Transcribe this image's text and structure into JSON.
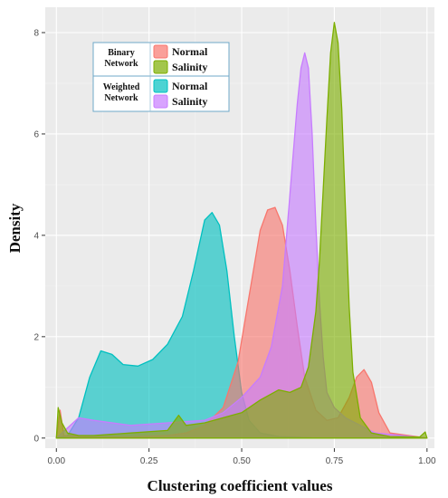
{
  "chart_data": {
    "type": "area",
    "title": "",
    "xlabel": "Clustering coefficient values",
    "ylabel": "Density",
    "xlim": [
      -0.03,
      1.02
    ],
    "ylim": [
      -0.2,
      8.5
    ],
    "x_ticks": [
      0.0,
      0.25,
      0.5,
      0.75,
      1.0
    ],
    "x_tick_labels": [
      "0.00",
      "0.25",
      "0.50",
      "0.75",
      "1.00"
    ],
    "y_ticks": [
      0,
      2,
      4,
      6,
      8
    ],
    "y_tick_labels": [
      "0",
      "2",
      "4",
      "6",
      "8"
    ],
    "grid": true,
    "legend_position": "top-left",
    "legend": {
      "groups": [
        {
          "group_label": [
            "Binary",
            "Network"
          ],
          "entries": [
            "Normal",
            "Salinity"
          ]
        },
        {
          "group_label": [
            "Weighted",
            "Network"
          ],
          "entries": [
            "Normal",
            "Salinity"
          ]
        }
      ]
    },
    "series": [
      {
        "group": "Weighted Network",
        "label": "Normal",
        "color": "#00c0c0",
        "x": [
          0.0,
          0.03,
          0.06,
          0.09,
          0.12,
          0.15,
          0.18,
          0.22,
          0.26,
          0.3,
          0.34,
          0.37,
          0.4,
          0.42,
          0.44,
          0.46,
          0.48,
          0.5,
          0.52,
          0.55,
          0.6,
          0.7,
          1.0
        ],
        "y": [
          0,
          0.05,
          0.4,
          1.2,
          1.72,
          1.65,
          1.45,
          1.42,
          1.55,
          1.85,
          2.4,
          3.3,
          4.3,
          4.45,
          4.2,
          3.3,
          2.0,
          0.9,
          0.35,
          0.1,
          0.03,
          0,
          0
        ]
      },
      {
        "group": "Binary Network",
        "label": "Normal",
        "color": "#f8766d",
        "x": [
          0.0,
          0.01,
          0.02,
          0.1,
          0.2,
          0.3,
          0.35,
          0.4,
          0.45,
          0.49,
          0.52,
          0.55,
          0.57,
          0.59,
          0.61,
          0.63,
          0.65,
          0.67,
          0.7,
          0.73,
          0.76,
          0.79,
          0.81,
          0.83,
          0.85,
          0.87,
          0.9,
          1.0
        ],
        "y": [
          0,
          0.55,
          0.05,
          0.02,
          0.02,
          0.05,
          0.1,
          0.25,
          0.6,
          1.5,
          2.8,
          4.1,
          4.5,
          4.55,
          4.2,
          3.3,
          2.2,
          1.2,
          0.55,
          0.35,
          0.4,
          0.8,
          1.2,
          1.35,
          1.1,
          0.5,
          0.1,
          0
        ]
      },
      {
        "group": "Weighted Network",
        "label": "Salinity",
        "color": "#c77cff",
        "x": [
          0.0,
          0.03,
          0.06,
          0.1,
          0.2,
          0.3,
          0.4,
          0.45,
          0.5,
          0.55,
          0.58,
          0.61,
          0.63,
          0.65,
          0.66,
          0.67,
          0.68,
          0.69,
          0.7,
          0.71,
          0.72,
          0.73,
          0.75,
          0.78,
          0.82,
          0.86,
          1.0
        ],
        "y": [
          0,
          0.2,
          0.4,
          0.35,
          0.25,
          0.3,
          0.35,
          0.5,
          0.8,
          1.2,
          1.8,
          3.0,
          4.8,
          6.6,
          7.3,
          7.6,
          7.3,
          6.0,
          4.2,
          2.7,
          1.6,
          0.9,
          0.6,
          0.4,
          0.25,
          0.1,
          0
        ]
      },
      {
        "group": "Binary Network",
        "label": "Salinity",
        "color": "#7cae00",
        "x": [
          0.0,
          0.005,
          0.015,
          0.03,
          0.06,
          0.1,
          0.2,
          0.3,
          0.33,
          0.35,
          0.4,
          0.5,
          0.55,
          0.6,
          0.63,
          0.66,
          0.68,
          0.7,
          0.71,
          0.72,
          0.73,
          0.74,
          0.75,
          0.76,
          0.77,
          0.78,
          0.79,
          0.8,
          0.82,
          0.85,
          0.9,
          0.98,
          0.995,
          1.0
        ],
        "y": [
          0,
          0.6,
          0.3,
          0.1,
          0.05,
          0.05,
          0.1,
          0.15,
          0.45,
          0.25,
          0.3,
          0.5,
          0.75,
          0.95,
          0.9,
          1.0,
          1.4,
          2.5,
          3.5,
          4.9,
          6.3,
          7.6,
          8.2,
          7.8,
          6.5,
          4.5,
          2.6,
          1.3,
          0.4,
          0.1,
          0.03,
          0.02,
          0.12,
          0
        ]
      }
    ]
  }
}
